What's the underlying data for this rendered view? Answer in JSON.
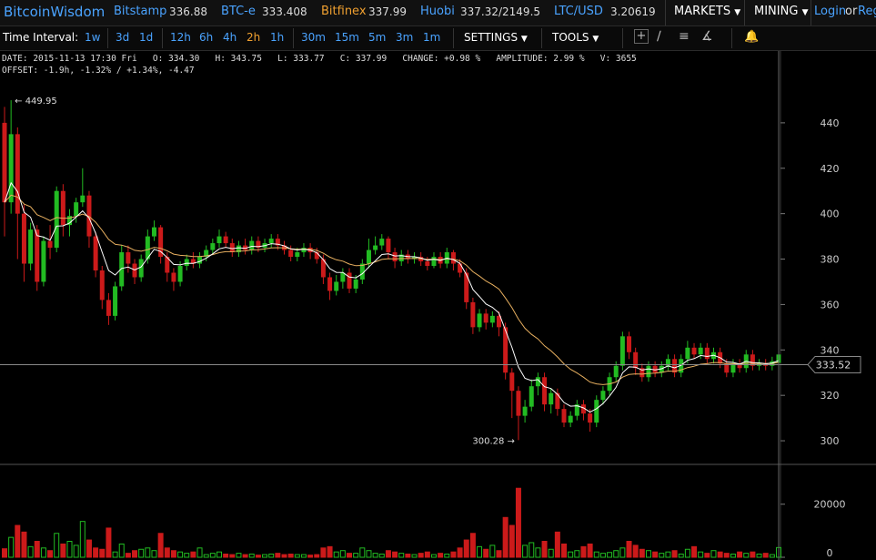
{
  "header": {
    "brand": "BitcoinWisdom",
    "markets": [
      {
        "name": "Bitstamp",
        "price": "336.88"
      },
      {
        "name": "BTC-e",
        "price": "333.408"
      },
      {
        "name": "Bitfinex",
        "price": "337.99"
      },
      {
        "name": "Huobi",
        "price": "337.32/2149.5"
      },
      {
        "name": "LTC/USD",
        "price": "3.20619"
      }
    ],
    "markets_menu": "MARKETS",
    "mining_menu": "MINING",
    "login": "Login",
    "or": "or",
    "register": "Reg"
  },
  "toolbar": {
    "time_interval_label": "Time Interval:",
    "intervals": [
      "1w",
      "3d",
      "1d",
      "12h",
      "6h",
      "4h",
      "2h",
      "1h",
      "30m",
      "15m",
      "5m",
      "3m",
      "1m"
    ],
    "active_interval": "2h",
    "settings": "SETTINGS",
    "tools": "TOOLS"
  },
  "info": {
    "line1": "DATE: 2015-11-13 17:30 Fri   O: 334.30   H: 343.75   L: 333.77   C: 337.99   CHANGE: +0.98 %   AMPLITUDE: 2.99 %   V: 3655",
    "line2": "OFFSET: -1.9h, -1.32% / +1.34%, -4.47"
  },
  "colors": {
    "up": "#22bb22",
    "down": "#cc1a1a",
    "ma_fast": "#ffffff",
    "ma_slow": "#e8b060",
    "accent": "#4aa3ff",
    "active": "#f0a030"
  },
  "chart_data": {
    "type": "candlestick",
    "price_axis": {
      "ticks": [
        300,
        320,
        340,
        360,
        380,
        400,
        420,
        440
      ],
      "range": [
        290,
        460
      ]
    },
    "volume_axis": {
      "ticks": [
        0,
        20000
      ],
      "range": [
        0,
        35000
      ]
    },
    "annotations": {
      "high": "449.95",
      "low": "300.28",
      "crosshair_price": "333.52"
    },
    "candles": [
      [
        440.0,
        405.0,
        447.0,
        390.0
      ],
      [
        405.0,
        435.0,
        449.95,
        400.0
      ],
      [
        435.0,
        400.0,
        438.0,
        380.0
      ],
      [
        400.0,
        378.0,
        404.0,
        370.0
      ],
      [
        378.0,
        393.0,
        396.0,
        375.0
      ],
      [
        393.0,
        370.0,
        395.0,
        366.0
      ],
      [
        370.0,
        388.0,
        390.0,
        368.0
      ],
      [
        388.0,
        385.0,
        395.0,
        380.0
      ],
      [
        385.0,
        410.0,
        412.0,
        383.0
      ],
      [
        410.0,
        395.0,
        413.0,
        390.0
      ],
      [
        395.0,
        399.0,
        402.0,
        390.0
      ],
      [
        399.0,
        405.0,
        407.0,
        396.0
      ],
      [
        405.0,
        408.0,
        420.0,
        403.0
      ],
      [
        408.0,
        390.0,
        410.0,
        385.0
      ],
      [
        390.0,
        375.0,
        392.0,
        372.0
      ],
      [
        375.0,
        362.0,
        377.0,
        358.0
      ],
      [
        362.0,
        355.0,
        365.0,
        351.0
      ],
      [
        355.0,
        368.0,
        370.0,
        353.0
      ],
      [
        368.0,
        383.0,
        386.0,
        366.0
      ],
      [
        383.0,
        378.0,
        386.0,
        374.0
      ],
      [
        378.0,
        372.0,
        380.0,
        369.0
      ],
      [
        372.0,
        380.0,
        382.0,
        370.0
      ],
      [
        380.0,
        390.0,
        393.0,
        378.0
      ],
      [
        390.0,
        394.0,
        397.0,
        388.0
      ],
      [
        394.0,
        381.0,
        395.0,
        378.0
      ],
      [
        381.0,
        374.0,
        383.0,
        370.0
      ],
      [
        374.0,
        370.0,
        376.0,
        366.0
      ],
      [
        370.0,
        377.0,
        379.0,
        368.0
      ],
      [
        377.0,
        380.0,
        382.0,
        375.0
      ],
      [
        380.0,
        378.0,
        383.0,
        376.0
      ],
      [
        378.0,
        381.0,
        383.0,
        376.0
      ],
      [
        381.0,
        384.0,
        386.0,
        379.0
      ],
      [
        384.0,
        387.0,
        389.0,
        382.0
      ],
      [
        387.0,
        390.0,
        393.0,
        385.0
      ],
      [
        390.0,
        387.0,
        392.0,
        385.0
      ],
      [
        387.0,
        383.0,
        389.0,
        381.0
      ],
      [
        383.0,
        386.0,
        388.0,
        381.0
      ],
      [
        386.0,
        384.0,
        389.0,
        382.0
      ],
      [
        384.0,
        388.0,
        390.0,
        382.0
      ],
      [
        388.0,
        385.0,
        390.0,
        383.0
      ],
      [
        385.0,
        387.0,
        389.0,
        383.0
      ],
      [
        387.0,
        389.0,
        391.0,
        385.0
      ],
      [
        389.0,
        386.0,
        391.0,
        384.0
      ],
      [
        386.0,
        384.0,
        388.0,
        382.0
      ],
      [
        384.0,
        381.0,
        386.0,
        379.0
      ],
      [
        381.0,
        383.0,
        385.0,
        379.0
      ],
      [
        383.0,
        385.0,
        387.0,
        381.0
      ],
      [
        385.0,
        383.0,
        387.0,
        380.0
      ],
      [
        383.0,
        380.0,
        385.0,
        378.0
      ],
      [
        380.0,
        372.0,
        382.0,
        369.0
      ],
      [
        372.0,
        366.0,
        374.0,
        362.0
      ],
      [
        366.0,
        370.0,
        373.0,
        364.0
      ],
      [
        370.0,
        374.0,
        376.0,
        367.0
      ],
      [
        374.0,
        367.0,
        376.0,
        365.0
      ],
      [
        367.0,
        371.0,
        373.0,
        365.0
      ],
      [
        371.0,
        378.0,
        380.0,
        369.0
      ],
      [
        378.0,
        384.0,
        389.0,
        376.0
      ],
      [
        384.0,
        386.0,
        390.0,
        382.0
      ],
      [
        386.0,
        389.0,
        391.0,
        384.0
      ],
      [
        389.0,
        383.0,
        390.0,
        380.0
      ],
      [
        383.0,
        379.0,
        385.0,
        376.0
      ],
      [
        379.0,
        382.0,
        384.0,
        377.0
      ],
      [
        382.0,
        380.0,
        384.0,
        378.0
      ],
      [
        380.0,
        381.0,
        383.0,
        378.0
      ],
      [
        381.0,
        379.0,
        383.0,
        377.0
      ],
      [
        379.0,
        377.0,
        381.0,
        375.0
      ],
      [
        377.0,
        381.0,
        383.0,
        376.0
      ],
      [
        381.0,
        378.0,
        383.0,
        376.0
      ],
      [
        378.0,
        383.0,
        385.0,
        376.0
      ],
      [
        383.0,
        378.0,
        384.0,
        375.0
      ],
      [
        378.0,
        374.0,
        380.0,
        372.0
      ],
      [
        374.0,
        361.0,
        376.0,
        358.0
      ],
      [
        361.0,
        350.0,
        363.0,
        347.0
      ],
      [
        350.0,
        356.0,
        358.0,
        348.0
      ],
      [
        356.0,
        352.0,
        358.0,
        349.0
      ],
      [
        352.0,
        355.0,
        357.0,
        350.0
      ],
      [
        355.0,
        350.0,
        357.0,
        346.0
      ],
      [
        350.0,
        330.0,
        352.0,
        327.0
      ],
      [
        330.0,
        322.0,
        332.0,
        310.0
      ],
      [
        322.0,
        311.0,
        324.0,
        300.28
      ],
      [
        311.0,
        315.0,
        318.0,
        308.0
      ],
      [
        315.0,
        324.0,
        327.0,
        313.0
      ],
      [
        324.0,
        328.0,
        330.0,
        320.0
      ],
      [
        328.0,
        316.0,
        330.0,
        313.0
      ],
      [
        316.0,
        321.0,
        323.0,
        312.0
      ],
      [
        321.0,
        314.0,
        323.0,
        311.0
      ],
      [
        314.0,
        308.0,
        316.0,
        306.0
      ],
      [
        308.0,
        311.0,
        313.0,
        306.0
      ],
      [
        311.0,
        316.0,
        318.0,
        309.0
      ],
      [
        316.0,
        312.0,
        318.0,
        309.0
      ],
      [
        312.0,
        308.0,
        314.0,
        304.0
      ],
      [
        308.0,
        318.0,
        320.0,
        306.0
      ],
      [
        318.0,
        322.0,
        324.0,
        316.0
      ],
      [
        322.0,
        328.0,
        330.0,
        320.0
      ],
      [
        328.0,
        333.0,
        335.0,
        326.0
      ],
      [
        333.0,
        346.0,
        348.0,
        331.0
      ],
      [
        346.0,
        339.0,
        348.0,
        336.0
      ],
      [
        339.0,
        332.0,
        341.0,
        329.0
      ],
      [
        332.0,
        328.0,
        334.0,
        326.0
      ],
      [
        328.0,
        333.0,
        335.0,
        326.0
      ],
      [
        333.0,
        330.0,
        335.0,
        328.0
      ],
      [
        330.0,
        333.0,
        335.0,
        328.0
      ],
      [
        333.0,
        336.0,
        338.0,
        331.0
      ],
      [
        336.0,
        330.0,
        338.0,
        328.0
      ],
      [
        330.0,
        336.0,
        338.0,
        328.0
      ],
      [
        336.0,
        341.0,
        344.0,
        334.0
      ],
      [
        341.0,
        338.0,
        343.0,
        336.0
      ],
      [
        338.0,
        341.0,
        343.0,
        336.0
      ],
      [
        341.0,
        336.0,
        343.0,
        334.0
      ],
      [
        336.0,
        339.0,
        341.0,
        334.0
      ],
      [
        339.0,
        334.0,
        341.0,
        332.0
      ],
      [
        334.0,
        330.0,
        336.0,
        328.0
      ],
      [
        330.0,
        334.0,
        336.0,
        328.0
      ],
      [
        334.0,
        332.0,
        336.0,
        330.0
      ],
      [
        332.0,
        338.0,
        340.0,
        330.0
      ],
      [
        338.0,
        333.0,
        340.0,
        331.0
      ],
      [
        333.0,
        334.0,
        336.0,
        331.0
      ],
      [
        334.0,
        333.0,
        336.0,
        331.0
      ],
      [
        333.0,
        335.0,
        337.0,
        331.0
      ],
      [
        334.3,
        337.99,
        343.75,
        333.77
      ]
    ],
    "volumes": [
      3200,
      7500,
      12000,
      9500,
      4000,
      6000,
      3500,
      2500,
      9000,
      5000,
      6000,
      4500,
      13500,
      6500,
      3500,
      3000,
      11000,
      2000,
      5000,
      1500,
      2500,
      3000,
      3500,
      2500,
      9000,
      3500,
      2500,
      2000,
      1500,
      2000,
      3500,
      1000,
      1500,
      2000,
      1200,
      1000,
      1500,
      1000,
      1200,
      800,
      1000,
      1200,
      1500,
      1000,
      1200,
      1000,
      1000,
      800,
      1000,
      3500,
      4000,
      2000,
      2500,
      1500,
      1500,
      3500,
      2500,
      1500,
      1200,
      2500,
      2000,
      1500,
      1200,
      1000,
      1500,
      2000,
      1000,
      1500,
      1200,
      2000,
      3500,
      6500,
      9000,
      4000,
      3000,
      4500,
      2500,
      15000,
      12000,
      26000,
      4500,
      5500,
      3500,
      6000,
      3000,
      9500,
      5000,
      2000,
      2500,
      4000,
      5000,
      2000,
      1500,
      1800,
      2500,
      3500,
      6000,
      4500,
      3000,
      2500,
      2000,
      1500,
      2000,
      2500,
      1200,
      3000,
      4000,
      2000,
      1500,
      2500,
      2000,
      1500,
      1200,
      2000,
      1500,
      2000,
      1200,
      1500,
      1000,
      3655
    ]
  }
}
